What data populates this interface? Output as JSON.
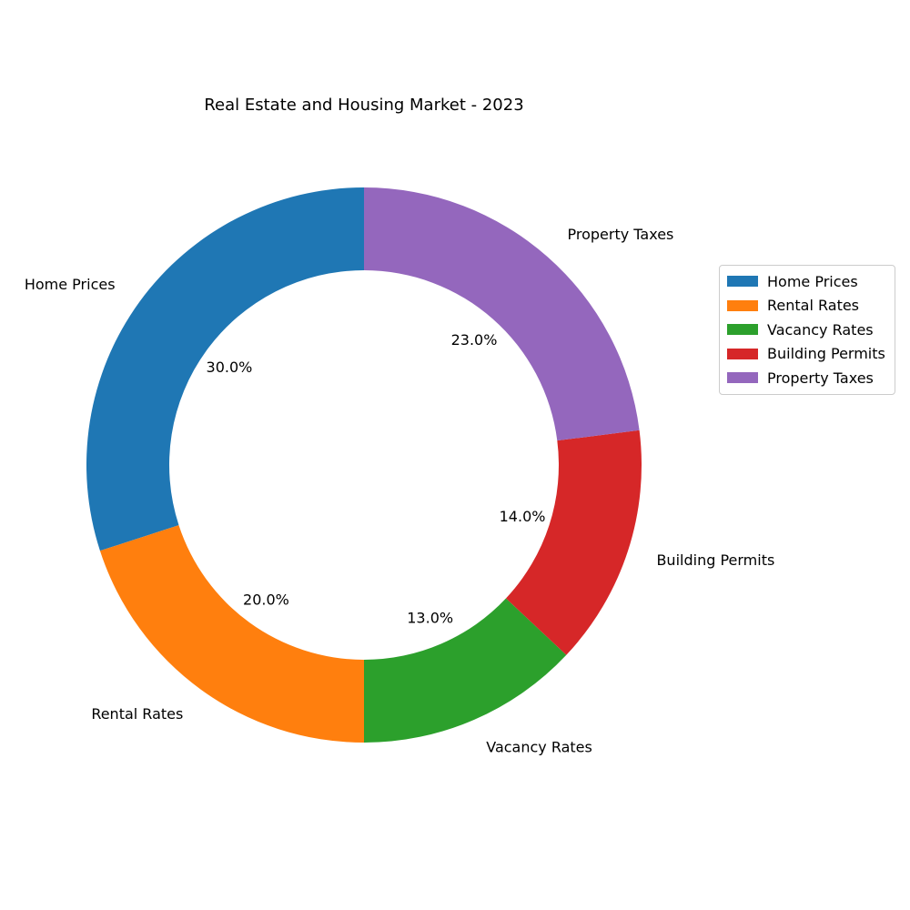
{
  "chart_data": {
    "type": "pie",
    "variant": "donut",
    "title": "Real Estate and Housing Market - 2023",
    "categories": [
      "Home Prices",
      "Rental Rates",
      "Vacancy Rates",
      "Building Permits",
      "Property Taxes"
    ],
    "values": [
      30,
      20,
      13,
      14,
      23
    ],
    "percent_labels": [
      "30.0%",
      "20.0%",
      "13.0%",
      "14.0%",
      "23.0%"
    ],
    "colors": [
      "#1f77b4",
      "#ff7f0e",
      "#2ca02c",
      "#d62728",
      "#9467bd"
    ],
    "start_angle_deg": 90,
    "direction": "counterclockwise",
    "legend": {
      "placement": "right",
      "entries": [
        "Home Prices",
        "Rental Rates",
        "Vacancy Rates",
        "Building Permits",
        "Property Taxes"
      ]
    }
  }
}
